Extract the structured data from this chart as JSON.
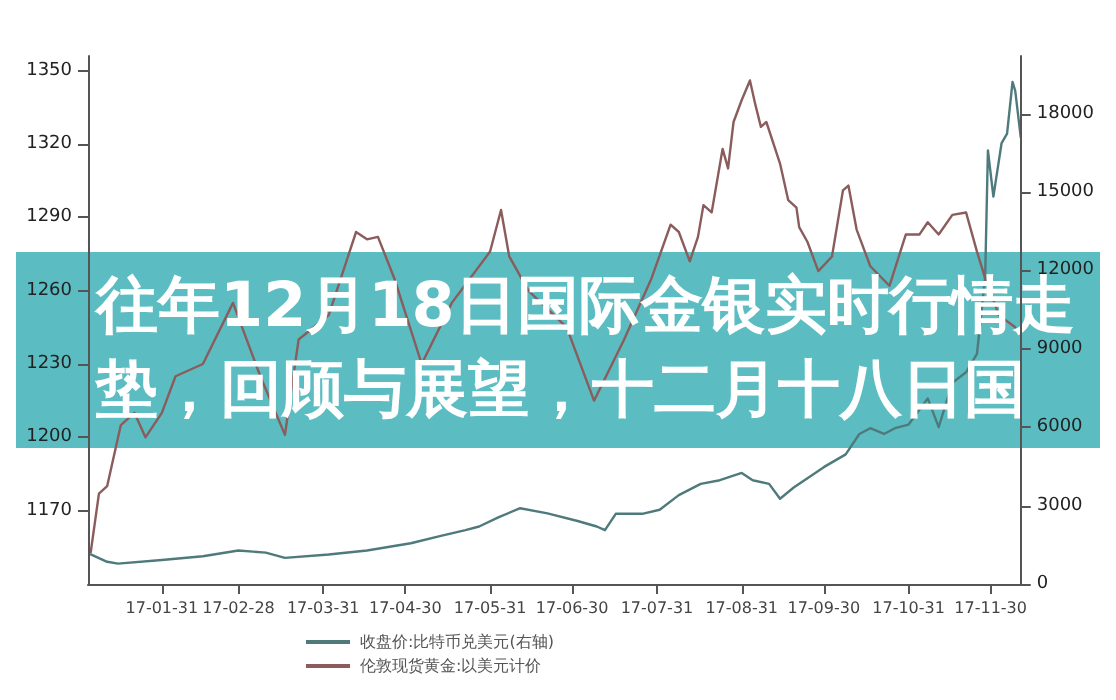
{
  "chart_data": {
    "type": "line",
    "title": "往年12月18日国际金银实时行情走垫，回顾与展望，十二月十八日国",
    "xlim": [
      "--01-04",
      "--12-11"
    ],
    "xticks": [
      {
        "value": "--01-31",
        "label": "17-01-31"
      },
      {
        "value": "--02-28",
        "label": "17-02-28"
      },
      {
        "value": "--03-31",
        "label": "17-03-31"
      },
      {
        "value": "--04-30",
        "label": "17-04-30"
      },
      {
        "value": "--05-31",
        "label": "17-05-31"
      },
      {
        "value": "--06-30",
        "label": "17-06-30"
      },
      {
        "value": "--07-31",
        "label": "17-07-31"
      },
      {
        "value": "--08-31",
        "label": "17-08-31"
      },
      {
        "value": "--09-30",
        "label": "17-09-30"
      },
      {
        "value": "--10-31",
        "label": "17-10-31"
      },
      {
        "value": "--11-30",
        "label": "17-11-30"
      }
    ],
    "ylim": [
      1140,
      1356
    ],
    "yticks": [
      1170,
      1200,
      1230,
      1260,
      1290,
      1320,
      1350
    ],
    "y2lim": [
      0,
      20200
    ],
    "y2ticks": [
      0,
      3000,
      6000,
      9000,
      12000,
      15000,
      18000
    ],
    "legend": "bottom",
    "grid": false,
    "marker": "none",
    "line_style": "solid",
    "series": [
      {
        "name": "收盘价:比特币兑美元(右轴)",
        "color": "#4f7a7c",
        "axis": "y2",
        "x": [
          "--01-05",
          "--01-11",
          "--01-15",
          "--01-31",
          "--02-15",
          "--02-28",
          "--03-10",
          "--03-17",
          "--04-02",
          "--04-16",
          "--05-02",
          "--05-13",
          "--05-22",
          "--05-27",
          "--06-03",
          "--06-11",
          "--06-21",
          "--07-02",
          "--07-09",
          "--07-12",
          "--07-16",
          "--07-26",
          "--08-01",
          "--08-08",
          "--08-16",
          "--08-23",
          "--08-31",
          "--09-04",
          "--09-10",
          "--09-14",
          "--09-19",
          "--09-30",
          "--10-08",
          "--10-13",
          "--10-17",
          "--10-22",
          "--10-26",
          "--10-31",
          "--11-07",
          "--11-11",
          "--11-16",
          "--11-21",
          "--11-25",
          "--11-28",
          "--11-29",
          "--12-01",
          "--12-04",
          "--12-06",
          "--12-08",
          "--12-09",
          "--12-11"
        ],
        "values": [
          1130,
          850,
          780,
          920,
          1060,
          1280,
          1200,
          1000,
          1130,
          1280,
          1560,
          1840,
          2060,
          2200,
          2550,
          2900,
          2700,
          2410,
          2200,
          2060,
          2690,
          2690,
          2840,
          3400,
          3830,
          3970,
          4250,
          3970,
          3830,
          3260,
          3690,
          4470,
          4960,
          5740,
          5960,
          5740,
          5960,
          6100,
          7100,
          6000,
          7700,
          8100,
          8800,
          11770,
          16590,
          14820,
          16870,
          17230,
          19210,
          18860,
          17090
        ]
      },
      {
        "name": "伦敦现货黄金:以美元计价",
        "color": "#8a5c5c",
        "x": [
          "--01-05",
          "--01-08",
          "--01-11",
          "--01-13",
          "--01-16",
          "--01-21",
          "--01-25",
          "--01-31",
          "--02-05",
          "--02-15",
          "--02-26",
          "--03-08",
          "--03-17",
          "--03-22",
          "--04-02",
          "--04-12",
          "--04-16",
          "--04-20",
          "--04-26",
          "--05-06",
          "--05-17",
          "--05-31",
          "--06-04",
          "--06-07",
          "--06-14",
          "--06-28",
          "--07-08",
          "--07-19",
          "--07-29",
          "--08-05",
          "--08-08",
          "--08-12",
          "--08-15",
          "--08-17",
          "--08-20",
          "--08-24",
          "--08-26",
          "--08-28",
          "--08-31",
          "--09-03",
          "--09-05",
          "--09-07",
          "--09-09",
          "--09-14",
          "--09-17",
          "--09-20",
          "--09-21",
          "--09-24",
          "--09-28",
          "--10-03",
          "--10-07",
          "--10-09",
          "--10-12",
          "--10-17",
          "--10-24",
          "--10-30",
          "--11-04",
          "--11-07",
          "--11-11",
          "--11-16",
          "--11-21",
          "--11-25",
          "--11-28",
          "--12-03",
          "--12-09"
        ],
        "values": [
          1153,
          1177,
          1180,
          1190,
          1205,
          1210,
          1200,
          1210,
          1225,
          1230,
          1255,
          1225,
          1201,
          1240,
          1250,
          1284,
          1281,
          1282,
          1265,
          1230,
          1255,
          1276,
          1293,
          1274,
          1260,
          1245,
          1215,
          1240,
          1265,
          1287,
          1284,
          1272,
          1282,
          1295,
          1292,
          1318,
          1310,
          1329,
          1338,
          1346,
          1336,
          1327,
          1329,
          1312,
          1297,
          1294,
          1286,
          1280,
          1268,
          1274,
          1301,
          1303,
          1285,
          1270,
          1262,
          1283,
          1283,
          1288,
          1283,
          1291,
          1292,
          1276,
          1265,
          1250,
          1245
        ]
      }
    ]
  }
}
